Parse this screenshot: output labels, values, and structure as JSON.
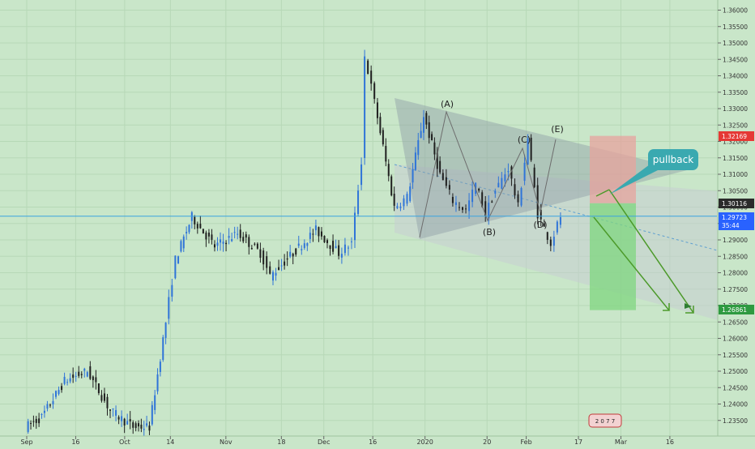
{
  "colors": {
    "background": "#c9e6c9",
    "candle_up": "#2f74d8",
    "candle_down": "#1f1f1f",
    "price_line": "#3aa3e0",
    "wedge_fill": "#8e9ea6",
    "channel_fill": "#c6cdd1",
    "stop_zone": "#e7a39d",
    "target_zone": "#7fd57f",
    "arrow": "#4c9a2a",
    "callout": "#3aa9b0",
    "label_red": "#e53935",
    "label_dark": "#2b2b2b",
    "label_blue": "#2962ff",
    "label_green": "#2e9a40"
  },
  "chart_data": {
    "type": "candlestick",
    "x_ticks": [
      "Sep",
      "16",
      "Oct",
      "14",
      "Nov",
      "18",
      "Dec",
      "16",
      "2020",
      "20",
      "Feb",
      "17",
      "Mar",
      "16"
    ],
    "y_ticks": [
      "1.36000",
      "1.35500",
      "1.35000",
      "1.34500",
      "1.34000",
      "1.33500",
      "1.33000",
      "1.32500",
      "1.32000",
      "1.31500",
      "1.31000",
      "1.30500",
      "1.30000",
      "1.29500",
      "1.29000",
      "1.28500",
      "1.28000",
      "1.27500",
      "1.27000",
      "1.26500",
      "1.26000",
      "1.25500",
      "1.25000",
      "1.24500",
      "1.24000",
      "1.23500"
    ],
    "ylim": [
      1.233,
      1.362
    ],
    "path_points": [
      [
        "2019-09-01",
        1.233
      ],
      [
        "2019-09-06",
        1.236
      ],
      [
        "2019-09-13",
        1.247
      ],
      [
        "2019-09-20",
        1.25
      ],
      [
        "2019-09-27",
        1.238
      ],
      [
        "2019-10-04",
        1.233
      ],
      [
        "2019-10-09",
        1.233
      ],
      [
        "2019-10-14",
        1.265
      ],
      [
        "2019-10-17",
        1.284
      ],
      [
        "2019-10-22",
        1.297
      ],
      [
        "2019-10-29",
        1.288
      ],
      [
        "2019-11-05",
        1.292
      ],
      [
        "2019-11-12",
        1.286
      ],
      [
        "2019-11-15",
        1.279
      ],
      [
        "2019-11-22",
        1.286
      ],
      [
        "2019-11-29",
        1.293
      ],
      [
        "2019-12-06",
        1.286
      ],
      [
        "2019-12-10",
        1.289
      ],
      [
        "2019-12-13",
        1.314
      ],
      [
        "2019-12-14",
        1.346
      ],
      [
        "2019-12-17",
        1.332
      ],
      [
        "2019-12-23",
        1.3
      ],
      [
        "2019-12-27",
        1.303
      ],
      [
        "2020-01-01",
        1.328
      ],
      [
        "2020-01-06",
        1.31
      ],
      [
        "2020-01-10",
        1.302
      ],
      [
        "2020-01-14",
        1.299
      ],
      [
        "2020-01-17",
        1.307
      ],
      [
        "2020-01-20",
        1.298
      ],
      [
        "2020-01-23",
        1.305
      ],
      [
        "2020-01-27",
        1.312
      ],
      [
        "2020-01-30",
        1.3
      ],
      [
        "2020-02-02",
        1.321
      ],
      [
        "2020-02-05",
        1.298
      ],
      [
        "2020-02-09",
        1.289
      ],
      [
        "2020-02-12",
        1.2972
      ]
    ],
    "price_levels": [
      {
        "label": "1.32169",
        "value": 1.32169,
        "color": "label_red"
      },
      {
        "label": "1.30116",
        "value": 1.30116,
        "color": "label_dark"
      },
      {
        "label": "1.29723",
        "value": 1.29723,
        "color": "label_blue"
      },
      {
        "label": "35:44",
        "value": 1.29723,
        "color": "label_blue"
      },
      {
        "label": "1.26861",
        "value": 1.26861,
        "color": "label_green"
      }
    ],
    "wave_labels": [
      {
        "text": "(A)",
        "x": "2020-01-01",
        "y": 1.33
      },
      {
        "text": "(B)",
        "x": "2020-01-14",
        "y": 1.2945
      },
      {
        "text": "(C)",
        "x": "2020-01-27",
        "y": 1.3145
      },
      {
        "text": "(D)",
        "x": "2020-02-02",
        "y": 1.2955
      },
      {
        "text": "(E)",
        "x": "2020-02-02",
        "y": 1.3235
      }
    ],
    "annotation": "pullback",
    "footer_badge": "2 0 7 7"
  }
}
